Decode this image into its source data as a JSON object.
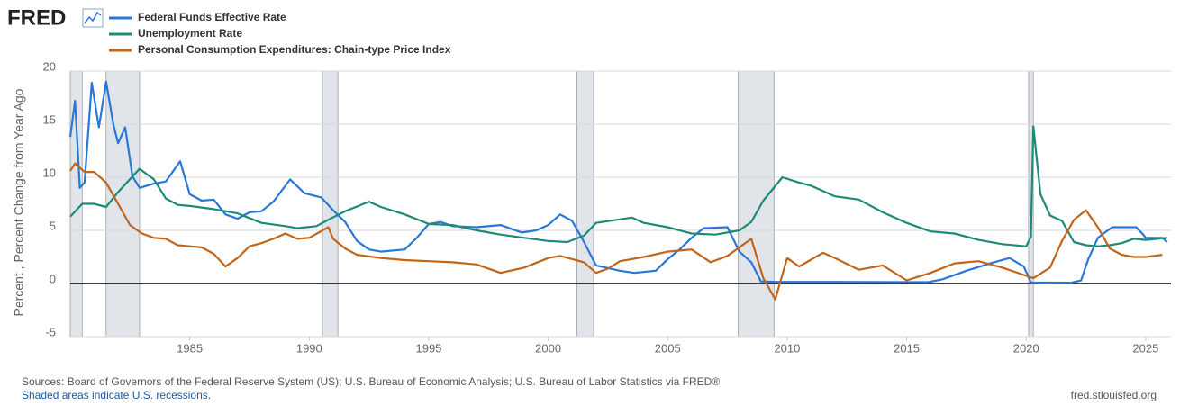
{
  "chart_data": {
    "type": "line",
    "logo": "FRED",
    "y_label": "Percent , Percent Change from Year Ago",
    "source": "Sources: Board of Governors of the Federal Reserve System (US); U.S. Bureau of Economic Analysis; U.S. Bureau of Labor Statistics via FRED®",
    "note": "Shaded areas indicate U.S. recessions.",
    "credit": "fred.stlouisfed.org",
    "xlim": [
      1980,
      2026.06
    ],
    "xticks": [
      1985,
      1990,
      1995,
      2000,
      2005,
      2010,
      2015,
      2020,
      2025
    ],
    "ylim": [
      -5,
      20
    ],
    "yticks": [
      -5,
      0,
      5,
      10,
      15,
      20
    ],
    "grid": true,
    "recessions": [
      [
        1980.0,
        1980.5
      ],
      [
        1981.5,
        1982.9
      ],
      [
        1990.55,
        1991.2
      ],
      [
        2001.2,
        2001.9
      ],
      [
        2007.95,
        2009.45
      ],
      [
        2020.1,
        2020.3
      ]
    ],
    "series": [
      {
        "name": "Federal Funds Effective Rate",
        "color": "#2878d8",
        "x": [
          1980.0,
          1980.2,
          1980.4,
          1980.6,
          1980.9,
          1981.2,
          1981.5,
          1981.8,
          1982.0,
          1982.3,
          1982.6,
          1982.9,
          1983.5,
          1984.0,
          1984.6,
          1985.0,
          1985.5,
          1986.0,
          1986.5,
          1987.0,
          1987.5,
          1988.0,
          1988.5,
          1989.2,
          1989.8,
          1990.5,
          1991.0,
          1991.5,
          1992.0,
          1992.5,
          1993.0,
          1994.0,
          1994.5,
          1995.0,
          1995.5,
          1996.0,
          1997.0,
          1998.0,
          1998.9,
          1999.5,
          2000.0,
          2000.5,
          2001.0,
          2001.5,
          2002.0,
          2003.0,
          2003.6,
          2004.5,
          2005.0,
          2005.5,
          2006.0,
          2006.5,
          2007.5,
          2008.0,
          2008.5,
          2008.9,
          2009.5,
          2012.0,
          2015.9,
          2016.5,
          2017.5,
          2018.5,
          2019.3,
          2019.9,
          2020.2,
          2021.9,
          2022.3,
          2022.6,
          2023.0,
          2023.6,
          2024.6,
          2024.9,
          2025.0,
          2025.7,
          2025.9
        ],
        "values": [
          13.8,
          17.2,
          9.0,
          9.5,
          18.9,
          14.7,
          19.0,
          15.0,
          13.2,
          14.7,
          10.1,
          9.0,
          9.4,
          9.6,
          11.5,
          8.4,
          7.8,
          7.9,
          6.5,
          6.1,
          6.7,
          6.8,
          7.7,
          9.8,
          8.5,
          8.1,
          6.9,
          5.8,
          4.0,
          3.2,
          3.0,
          3.2,
          4.3,
          5.6,
          5.8,
          5.4,
          5.3,
          5.5,
          4.8,
          5.0,
          5.5,
          6.5,
          5.9,
          3.9,
          1.7,
          1.2,
          1.0,
          1.2,
          2.3,
          3.2,
          4.3,
          5.2,
          5.3,
          3.0,
          2.0,
          0.2,
          0.15,
          0.15,
          0.13,
          0.4,
          1.2,
          1.9,
          2.4,
          1.6,
          0.1,
          0.08,
          0.3,
          2.3,
          4.3,
          5.3,
          5.3,
          4.6,
          4.3,
          4.3,
          3.9
        ]
      },
      {
        "name": "Unemployment Rate",
        "color": "#1c8a76",
        "x": [
          1980.0,
          1980.5,
          1981.0,
          1981.5,
          1982.0,
          1982.9,
          1983.5,
          1984.0,
          1984.5,
          1985.0,
          1986.0,
          1987.0,
          1988.0,
          1989.0,
          1989.5,
          1990.3,
          1990.8,
          1991.5,
          1992.5,
          1993.0,
          1994.0,
          1995.0,
          1996.0,
          1997.0,
          1998.0,
          1999.0,
          2000.0,
          2000.8,
          2001.5,
          2002.0,
          2003.5,
          2004.0,
          2005.0,
          2006.0,
          2007.0,
          2008.0,
          2008.5,
          2009.0,
          2009.8,
          2010.5,
          2011.0,
          2012.0,
          2013.0,
          2014.0,
          2015.0,
          2016.0,
          2017.0,
          2018.0,
          2019.0,
          2020.0,
          2020.2,
          2020.3,
          2020.6,
          2021.0,
          2021.5,
          2022.0,
          2022.5,
          2023.0,
          2023.5,
          2024.0,
          2024.5,
          2025.0,
          2025.9
        ],
        "values": [
          6.3,
          7.5,
          7.5,
          7.2,
          8.6,
          10.8,
          9.8,
          8.0,
          7.4,
          7.3,
          7.0,
          6.6,
          5.7,
          5.4,
          5.2,
          5.4,
          6.0,
          6.8,
          7.7,
          7.2,
          6.5,
          5.6,
          5.5,
          5.0,
          4.6,
          4.3,
          4.0,
          3.9,
          4.5,
          5.7,
          6.2,
          5.7,
          5.3,
          4.7,
          4.6,
          5.0,
          5.8,
          7.8,
          10.0,
          9.5,
          9.2,
          8.2,
          7.9,
          6.7,
          5.7,
          4.9,
          4.7,
          4.1,
          3.7,
          3.5,
          4.4,
          14.8,
          8.4,
          6.4,
          5.9,
          3.9,
          3.6,
          3.5,
          3.6,
          3.8,
          4.2,
          4.1,
          4.3
        ]
      },
      {
        "name": "Personal Consumption Expenditures: Chain-type Price Index",
        "color": "#c2651a",
        "x": [
          1980.0,
          1980.2,
          1980.6,
          1981.0,
          1981.5,
          1982.0,
          1982.5,
          1983.0,
          1983.5,
          1984.0,
          1984.5,
          1985.0,
          1985.5,
          1986.0,
          1986.5,
          1987.0,
          1987.5,
          1988.0,
          1988.5,
          1989.0,
          1989.5,
          1990.0,
          1990.8,
          1991.0,
          1991.5,
          1992.0,
          1993.0,
          1994.0,
          1995.0,
          1996.0,
          1997.0,
          1998.0,
          1999.0,
          2000.0,
          2000.5,
          2001.5,
          2002.0,
          2002.5,
          2003.0,
          2004.0,
          2005.0,
          2006.0,
          2006.8,
          2007.5,
          2008.5,
          2009.0,
          2009.5,
          2010.0,
          2010.5,
          2011.5,
          2012.0,
          2013.0,
          2014.0,
          2015.0,
          2016.0,
          2017.0,
          2018.0,
          2019.0,
          2020.3,
          2021.0,
          2021.5,
          2022.0,
          2022.5,
          2023.0,
          2023.5,
          2024.0,
          2024.5,
          2025.0,
          2025.7
        ],
        "values": [
          10.6,
          11.3,
          10.5,
          10.5,
          9.5,
          7.5,
          5.5,
          4.7,
          4.3,
          4.2,
          3.6,
          3.5,
          3.4,
          2.8,
          1.6,
          2.4,
          3.5,
          3.8,
          4.2,
          4.7,
          4.2,
          4.3,
          5.3,
          4.2,
          3.3,
          2.7,
          2.4,
          2.2,
          2.1,
          2.0,
          1.8,
          1.0,
          1.5,
          2.4,
          2.6,
          2.0,
          1.0,
          1.4,
          2.1,
          2.5,
          3.0,
          3.2,
          2.0,
          2.6,
          4.2,
          0.5,
          -1.5,
          2.4,
          1.6,
          2.9,
          2.4,
          1.3,
          1.7,
          0.3,
          1.0,
          1.9,
          2.1,
          1.5,
          0.5,
          1.5,
          4.0,
          6.0,
          6.9,
          5.3,
          3.3,
          2.7,
          2.5,
          2.5,
          2.7
        ]
      }
    ]
  }
}
